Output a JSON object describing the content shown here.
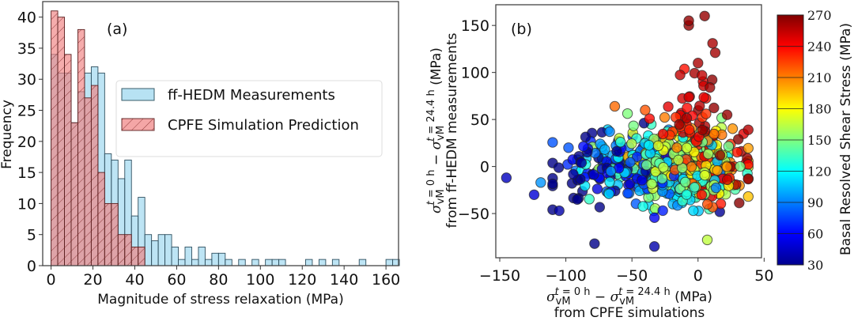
{
  "chart_data": [
    {
      "type": "bar",
      "subtype": "histogram",
      "panel_label": "(a)",
      "title": "",
      "xlabel": "Magnitude of stress relaxation (MPa)",
      "ylabel": "Frequency",
      "xlim": [
        -4,
        166
      ],
      "ylim": [
        0,
        42.5
      ],
      "xticks": [
        0,
        20,
        40,
        60,
        80,
        100,
        120,
        140,
        160
      ],
      "yticks": [
        0,
        5,
        10,
        15,
        20,
        25,
        30,
        35,
        40
      ],
      "bin_width": 3.2,
      "legend_position": "center-right",
      "series": [
        {
          "name": "ff-HEDM Measurements",
          "color": "#87ceeb",
          "hatch": "none",
          "bin_start": 0,
          "values": [
            34,
            31,
            31,
            23,
            28,
            31,
            32,
            31,
            18,
            17,
            14,
            17,
            8,
            11,
            5,
            4,
            5,
            5,
            3,
            1,
            3,
            1,
            3,
            1,
            2,
            2,
            1,
            0,
            1,
            0,
            1,
            0,
            1,
            1,
            1,
            0,
            0,
            0,
            1,
            0,
            1,
            0,
            1,
            0,
            0,
            0,
            1,
            0,
            0,
            0,
            1,
            1
          ]
        },
        {
          "name": "CPFE Simulation Prediction",
          "color": "#f08080",
          "hatch": "diagonal",
          "bin_start": 0,
          "values": [
            41,
            40,
            34,
            23,
            38,
            27,
            29,
            15,
            10,
            10,
            5,
            5,
            3,
            3
          ]
        }
      ]
    },
    {
      "type": "scatter",
      "panel_label": "(b)",
      "title": "",
      "xlabel_line1": "σ_vM^(t=0 h) − σ_vM^(t=24.4 h) (MPa)",
      "xlabel_line2": "from CPFE simulations",
      "ylabel_line1": "σ_vM^(t=0 h) − σ_vM^(t=24.4 h) (MPa)",
      "ylabel_line2": "from ff-HEDM measurements",
      "xlim": [
        -153,
        48
      ],
      "ylim": [
        -97,
        172
      ],
      "xticks": [
        -150,
        -100,
        -50,
        0,
        50
      ],
      "yticks": [
        -50,
        0,
        50,
        100,
        150
      ],
      "colorbar": {
        "label": "Basal Resolved Shear Stress (MPa)",
        "range": [
          30,
          270
        ],
        "ticks": [
          30,
          60,
          90,
          120,
          150,
          180,
          210,
          240,
          270
        ],
        "colormap": "jet"
      },
      "points_description": "approx. 700 grains; dense cluster centered near (0, 0), spread x∈[-145, 38], y∈[-85, 160]; high-stress (red) points extend up to y≈160 near x≈0; low-stress (blue) points scattered at negative x",
      "highlight_points": [
        {
          "x": -145,
          "y": -12,
          "c": 45
        },
        {
          "x": -124,
          "y": -30,
          "c": 50
        },
        {
          "x": -119,
          "y": -17,
          "c": 95
        },
        {
          "x": -105,
          "y": -47,
          "c": 40
        },
        {
          "x": -98,
          "y": 20,
          "c": 80
        },
        {
          "x": -7,
          "y": 150,
          "c": 265
        },
        {
          "x": -7,
          "y": 155,
          "c": 265
        },
        {
          "x": 5,
          "y": 160,
          "c": 265
        },
        {
          "x": 11,
          "y": 131,
          "c": 260
        },
        {
          "x": 13,
          "y": 121,
          "c": 262
        },
        {
          "x": 0,
          "y": 110,
          "c": 260
        },
        {
          "x": 3,
          "y": 97,
          "c": 255
        },
        {
          "x": 9,
          "y": 84,
          "c": 263
        },
        {
          "x": -63,
          "y": 64,
          "c": 215
        },
        {
          "x": -40,
          "y": 60,
          "c": 220
        },
        {
          "x": 22,
          "y": 55,
          "c": 264
        },
        {
          "x": -33,
          "y": -85,
          "c": 40
        },
        {
          "x": 7,
          "y": -78,
          "c": 165
        }
      ]
    }
  ],
  "panels": {
    "a_label": "(a)",
    "b_label": "(b)"
  },
  "colors": {
    "hist_blue": "#87ceeb",
    "hist_red": "#f08080",
    "hatch": "#7a1f1f"
  }
}
